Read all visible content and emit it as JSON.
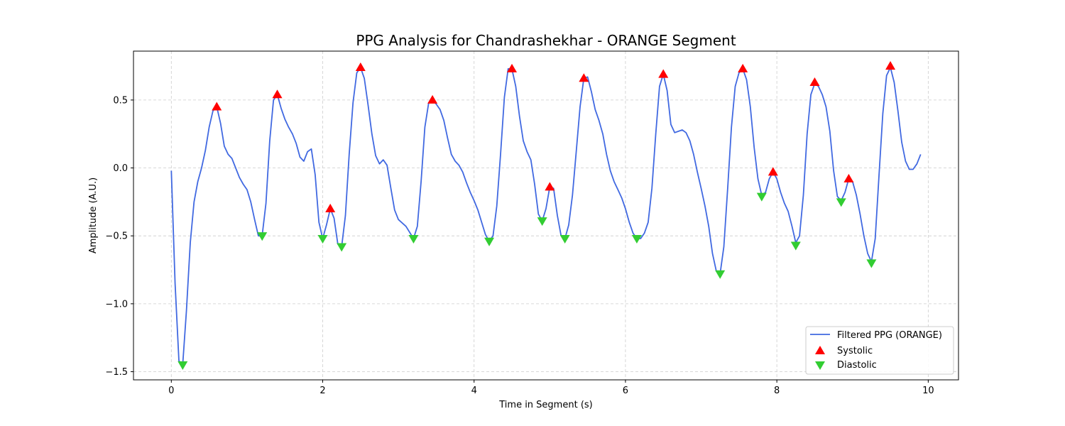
{
  "chart_data": {
    "type": "line",
    "title": "PPG Analysis for Chandrashekhar - ORANGE Segment",
    "xlabel": "Time in Segment (s)",
    "ylabel": "Amplitude (A.U.)",
    "xlim": [
      -0.5,
      10.4
    ],
    "ylim": [
      -1.56,
      0.86
    ],
    "xticks": [
      0,
      2,
      4,
      6,
      8,
      10
    ],
    "yticks": [
      -1.5,
      -1.0,
      -0.5,
      0.0,
      0.5
    ],
    "ytick_labels": [
      "−1.5",
      "−1.0",
      "−0.5",
      "0.0",
      "0.5"
    ],
    "grid": true,
    "legend_position": "lower-right",
    "colors": {
      "line": "#4169e1",
      "systolic": "#ff0000",
      "diastolic": "#32cd32"
    },
    "series": [
      {
        "name": "Filtered PPG (ORANGE)",
        "kind": "line",
        "points": [
          [
            0.0,
            -0.02
          ],
          [
            0.05,
            -0.85
          ],
          [
            0.1,
            -1.42
          ],
          [
            0.15,
            -1.45
          ],
          [
            0.2,
            -1.05
          ],
          [
            0.25,
            -0.55
          ],
          [
            0.3,
            -0.25
          ],
          [
            0.35,
            -0.1
          ],
          [
            0.4,
            0.0
          ],
          [
            0.45,
            0.13
          ],
          [
            0.5,
            0.3
          ],
          [
            0.55,
            0.42
          ],
          [
            0.6,
            0.45
          ],
          [
            0.65,
            0.33
          ],
          [
            0.7,
            0.16
          ],
          [
            0.75,
            0.1
          ],
          [
            0.8,
            0.07
          ],
          [
            0.85,
            0.0
          ],
          [
            0.9,
            -0.07
          ],
          [
            0.95,
            -0.12
          ],
          [
            1.0,
            -0.16
          ],
          [
            1.05,
            -0.25
          ],
          [
            1.1,
            -0.38
          ],
          [
            1.15,
            -0.5
          ],
          [
            1.2,
            -0.5
          ],
          [
            1.25,
            -0.26
          ],
          [
            1.3,
            0.2
          ],
          [
            1.35,
            0.5
          ],
          [
            1.4,
            0.54
          ],
          [
            1.45,
            0.44
          ],
          [
            1.5,
            0.36
          ],
          [
            1.55,
            0.3
          ],
          [
            1.6,
            0.25
          ],
          [
            1.65,
            0.18
          ],
          [
            1.7,
            0.08
          ],
          [
            1.75,
            0.05
          ],
          [
            1.8,
            0.12
          ],
          [
            1.85,
            0.14
          ],
          [
            1.9,
            -0.05
          ],
          [
            1.95,
            -0.4
          ],
          [
            2.0,
            -0.52
          ],
          [
            2.05,
            -0.42
          ],
          [
            2.1,
            -0.3
          ],
          [
            2.15,
            -0.37
          ],
          [
            2.2,
            -0.56
          ],
          [
            2.25,
            -0.58
          ],
          [
            2.3,
            -0.35
          ],
          [
            2.35,
            0.1
          ],
          [
            2.4,
            0.48
          ],
          [
            2.45,
            0.7
          ],
          [
            2.5,
            0.74
          ],
          [
            2.55,
            0.66
          ],
          [
            2.6,
            0.46
          ],
          [
            2.65,
            0.25
          ],
          [
            2.7,
            0.09
          ],
          [
            2.75,
            0.03
          ],
          [
            2.8,
            0.06
          ],
          [
            2.85,
            0.02
          ],
          [
            2.9,
            -0.15
          ],
          [
            2.95,
            -0.31
          ],
          [
            3.0,
            -0.38
          ],
          [
            3.1,
            -0.43
          ],
          [
            3.2,
            -0.52
          ],
          [
            3.25,
            -0.43
          ],
          [
            3.3,
            -0.1
          ],
          [
            3.35,
            0.3
          ],
          [
            3.4,
            0.48
          ],
          [
            3.45,
            0.5
          ],
          [
            3.5,
            0.47
          ],
          [
            3.55,
            0.43
          ],
          [
            3.6,
            0.35
          ],
          [
            3.65,
            0.22
          ],
          [
            3.7,
            0.1
          ],
          [
            3.75,
            0.05
          ],
          [
            3.8,
            0.02
          ],
          [
            3.85,
            -0.03
          ],
          [
            3.9,
            -0.11
          ],
          [
            3.95,
            -0.18
          ],
          [
            4.0,
            -0.24
          ],
          [
            4.05,
            -0.31
          ],
          [
            4.1,
            -0.4
          ],
          [
            4.15,
            -0.49
          ],
          [
            4.2,
            -0.54
          ],
          [
            4.25,
            -0.5
          ],
          [
            4.3,
            -0.28
          ],
          [
            4.35,
            0.1
          ],
          [
            4.4,
            0.52
          ],
          [
            4.45,
            0.73
          ],
          [
            4.5,
            0.73
          ],
          [
            4.55,
            0.6
          ],
          [
            4.6,
            0.38
          ],
          [
            4.65,
            0.2
          ],
          [
            4.7,
            0.12
          ],
          [
            4.75,
            0.06
          ],
          [
            4.8,
            -0.12
          ],
          [
            4.85,
            -0.34
          ],
          [
            4.9,
            -0.39
          ],
          [
            4.95,
            -0.3
          ],
          [
            5.0,
            -0.14
          ],
          [
            5.05,
            -0.15
          ],
          [
            5.1,
            -0.35
          ],
          [
            5.15,
            -0.5
          ],
          [
            5.2,
            -0.52
          ],
          [
            5.25,
            -0.42
          ],
          [
            5.3,
            -0.2
          ],
          [
            5.35,
            0.12
          ],
          [
            5.4,
            0.45
          ],
          [
            5.45,
            0.66
          ],
          [
            5.5,
            0.67
          ],
          [
            5.55,
            0.56
          ],
          [
            5.6,
            0.43
          ],
          [
            5.65,
            0.35
          ],
          [
            5.7,
            0.25
          ],
          [
            5.75,
            0.1
          ],
          [
            5.8,
            -0.02
          ],
          [
            5.85,
            -0.1
          ],
          [
            5.9,
            -0.16
          ],
          [
            5.95,
            -0.22
          ],
          [
            6.0,
            -0.3
          ],
          [
            6.05,
            -0.4
          ],
          [
            6.1,
            -0.48
          ],
          [
            6.15,
            -0.52
          ],
          [
            6.2,
            -0.52
          ],
          [
            6.25,
            -0.48
          ],
          [
            6.3,
            -0.4
          ],
          [
            6.35,
            -0.15
          ],
          [
            6.4,
            0.25
          ],
          [
            6.45,
            0.6
          ],
          [
            6.5,
            0.69
          ],
          [
            6.55,
            0.57
          ],
          [
            6.6,
            0.32
          ],
          [
            6.65,
            0.26
          ],
          [
            6.7,
            0.27
          ],
          [
            6.75,
            0.28
          ],
          [
            6.8,
            0.26
          ],
          [
            6.85,
            0.2
          ],
          [
            6.9,
            0.1
          ],
          [
            6.95,
            -0.03
          ],
          [
            7.0,
            -0.15
          ],
          [
            7.05,
            -0.28
          ],
          [
            7.1,
            -0.43
          ],
          [
            7.15,
            -0.63
          ],
          [
            7.2,
            -0.76
          ],
          [
            7.25,
            -0.78
          ],
          [
            7.3,
            -0.58
          ],
          [
            7.35,
            -0.15
          ],
          [
            7.4,
            0.3
          ],
          [
            7.45,
            0.6
          ],
          [
            7.5,
            0.7
          ],
          [
            7.55,
            0.73
          ],
          [
            7.6,
            0.65
          ],
          [
            7.65,
            0.45
          ],
          [
            7.7,
            0.15
          ],
          [
            7.75,
            -0.08
          ],
          [
            7.8,
            -0.2
          ],
          [
            7.85,
            -0.18
          ],
          [
            7.9,
            -0.08
          ],
          [
            7.95,
            -0.03
          ],
          [
            8.0,
            -0.08
          ],
          [
            8.05,
            -0.18
          ],
          [
            8.1,
            -0.26
          ],
          [
            8.15,
            -0.32
          ],
          [
            8.2,
            -0.43
          ],
          [
            8.25,
            -0.55
          ],
          [
            8.3,
            -0.5
          ],
          [
            8.35,
            -0.2
          ],
          [
            8.4,
            0.25
          ],
          [
            8.45,
            0.54
          ],
          [
            8.5,
            0.62
          ],
          [
            8.55,
            0.6
          ],
          [
            8.6,
            0.54
          ],
          [
            8.65,
            0.45
          ],
          [
            8.7,
            0.27
          ],
          [
            8.75,
            -0.02
          ],
          [
            8.8,
            -0.21
          ],
          [
            8.85,
            -0.24
          ],
          [
            8.9,
            -0.18
          ],
          [
            8.95,
            -0.08
          ],
          [
            9.0,
            -0.1
          ],
          [
            9.05,
            -0.2
          ],
          [
            9.1,
            -0.34
          ],
          [
            9.15,
            -0.5
          ],
          [
            9.2,
            -0.63
          ],
          [
            9.25,
            -0.69
          ],
          [
            9.3,
            -0.52
          ],
          [
            9.35,
            -0.05
          ],
          [
            9.4,
            0.4
          ],
          [
            9.45,
            0.68
          ],
          [
            9.5,
            0.74
          ],
          [
            9.55,
            0.63
          ],
          [
            9.6,
            0.42
          ],
          [
            9.65,
            0.19
          ],
          [
            9.7,
            0.05
          ],
          [
            9.75,
            -0.01
          ],
          [
            9.8,
            -0.01
          ],
          [
            9.85,
            0.03
          ],
          [
            9.9,
            0.1
          ]
        ]
      },
      {
        "name": "Systolic",
        "kind": "scatter",
        "marker": "triangle-up",
        "points": [
          [
            0.6,
            0.45
          ],
          [
            1.4,
            0.54
          ],
          [
            2.1,
            -0.3
          ],
          [
            2.5,
            0.74
          ],
          [
            3.45,
            0.5
          ],
          [
            4.5,
            0.73
          ],
          [
            5.0,
            -0.14
          ],
          [
            5.45,
            0.66
          ],
          [
            6.5,
            0.69
          ],
          [
            7.55,
            0.73
          ],
          [
            7.95,
            -0.03
          ],
          [
            8.5,
            0.63
          ],
          [
            8.95,
            -0.08
          ],
          [
            9.5,
            0.75
          ]
        ]
      },
      {
        "name": "Diastolic",
        "kind": "scatter",
        "marker": "triangle-down",
        "points": [
          [
            0.15,
            -1.45
          ],
          [
            1.2,
            -0.5
          ],
          [
            2.0,
            -0.52
          ],
          [
            2.25,
            -0.58
          ],
          [
            3.2,
            -0.52
          ],
          [
            4.2,
            -0.54
          ],
          [
            4.9,
            -0.39
          ],
          [
            5.2,
            -0.52
          ],
          [
            6.15,
            -0.52
          ],
          [
            7.25,
            -0.78
          ],
          [
            7.8,
            -0.21
          ],
          [
            8.25,
            -0.57
          ],
          [
            8.85,
            -0.25
          ],
          [
            9.25,
            -0.7
          ]
        ]
      }
    ]
  }
}
